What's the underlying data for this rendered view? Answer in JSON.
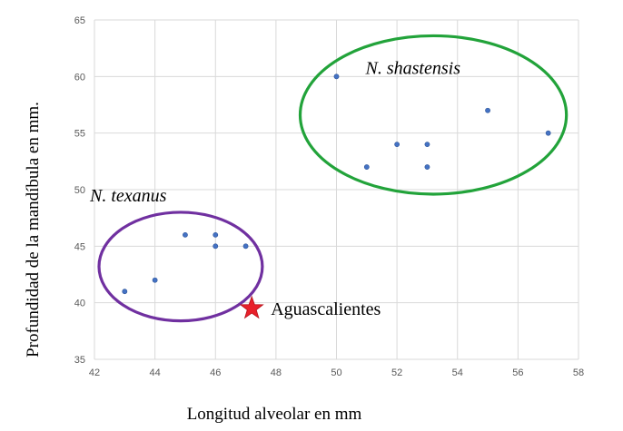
{
  "chart_data": {
    "type": "scatter",
    "title": "",
    "xlabel": "Longitud alveolar en mm",
    "ylabel": "Profundidad de la mandíbula en  mm.",
    "xlim": [
      42,
      58
    ],
    "ylim": [
      35,
      65
    ],
    "x_ticks": [
      "42",
      "44",
      "46",
      "48",
      "50",
      "52",
      "54",
      "56",
      "58"
    ],
    "y_ticks": [
      "35",
      "40",
      "45",
      "50",
      "55",
      "60",
      "65"
    ],
    "grid": true,
    "legend": "none",
    "colors": {
      "points": "#4472c4",
      "texanus_ellipse": "#7030a0",
      "shastensis_ellipse": "#22a33a",
      "star": "#e8202a"
    },
    "series": [
      {
        "points": [
          {
            "x": 43,
            "y": 41
          },
          {
            "x": 44,
            "y": 42
          },
          {
            "x": 45,
            "y": 46
          },
          {
            "x": 46,
            "y": 46
          },
          {
            "x": 46,
            "y": 45
          },
          {
            "x": 47,
            "y": 45
          },
          {
            "x": 50,
            "y": 60
          },
          {
            "x": 51,
            "y": 52
          },
          {
            "x": 52,
            "y": 54
          },
          {
            "x": 53,
            "y": 54
          },
          {
            "x": 53,
            "y": 52
          },
          {
            "x": 55,
            "y": 57
          },
          {
            "x": 57,
            "y": 55
          }
        ]
      }
    ],
    "groups": [
      {
        "label": "N. texanus",
        "center": {
          "x": 44.85,
          "y": 43.2
        },
        "radius_x": 2.7,
        "radius_y": 4.8
      },
      {
        "label": "N. shastensis",
        "center": {
          "x": 53.2,
          "y": 56.6
        },
        "radius_x": 4.4,
        "radius_y": 7.0
      }
    ],
    "annotations": [
      {
        "label": "Aguascalientes",
        "x": 47.2,
        "y": 39.5,
        "marker": "star"
      }
    ]
  }
}
